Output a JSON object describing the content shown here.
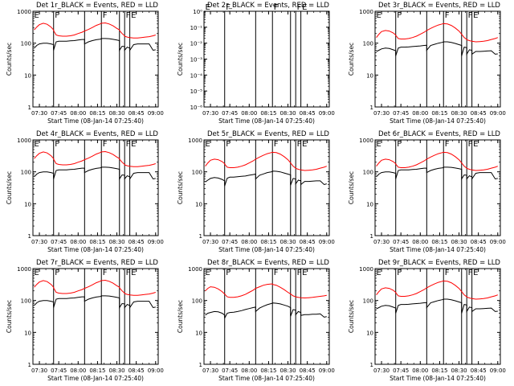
{
  "chart_data": [
    {
      "type": "line",
      "title": "Det 1r_BLACK = Events, RED = LLD",
      "ylabel": "Counts/sec",
      "xlabel": "Start Time (08-Jan-14 07:25:40)",
      "yscale": "log",
      "ylim": [
        1,
        1000
      ],
      "xticks": [
        "07:30",
        "07:45",
        "08:00",
        "08:15",
        "08:30",
        "08:45",
        "09:00"
      ],
      "yticks": [
        "1",
        "10",
        "100",
        "1000"
      ],
      "markers": [
        {
          "label": "E",
          "x": "07:25"
        },
        {
          "label": "F",
          "x": "07:41"
        },
        {
          "label": "",
          "x": "08:05"
        },
        {
          "label": "F",
          "x": "08:18"
        },
        {
          "label": "",
          "x": "08:32"
        },
        {
          "label": "F",
          "x": "08:36"
        },
        {
          "label": "E",
          "x": "08:40"
        }
      ],
      "series": [
        {
          "name": "LLD",
          "color": "#ff0000",
          "shape": "lld_a"
        },
        {
          "name": "Events",
          "color": "#000000",
          "shape": "evt_a"
        }
      ]
    },
    {
      "type": "line",
      "title": "Det 2r_BLACK = Events, RED = LLD",
      "ylabel": "Counts/sec",
      "xlabel": "Start Time (08-Jan-14 07:25:40)",
      "yscale": "log",
      "ylim": [
        1e-06,
        1
      ],
      "xticks": [
        "07:30",
        "07:45",
        "08:00",
        "08:15",
        "08:30",
        "08:45",
        "09:00"
      ],
      "yticks": [
        "10⁻⁶",
        "10⁻⁵",
        "10⁻⁴",
        "10⁻³",
        "10⁻²",
        "10⁻¹",
        "10⁰"
      ],
      "markers": [
        {
          "label": "E",
          "x": "07:25"
        },
        {
          "label": "F",
          "x": "07:41"
        },
        {
          "label": "",
          "x": "08:05"
        },
        {
          "label": "F",
          "x": "08:18"
        },
        {
          "label": "",
          "x": "08:32"
        },
        {
          "label": "F",
          "x": "08:36"
        },
        {
          "label": "E",
          "x": "08:40"
        }
      ],
      "series": []
    },
    {
      "type": "line",
      "title": "Det 3r_BLACK = Events, RED = LLD",
      "ylabel": "Counts/sec",
      "xlabel": "Start Time (08-Jan-14 07:25:40)",
      "yscale": "log",
      "ylim": [
        1,
        1000
      ],
      "xticks": [
        "07:30",
        "07:45",
        "08:00",
        "08:15",
        "08:30",
        "08:45",
        "09:00"
      ],
      "yticks": [
        "1",
        "10",
        "100",
        "1000"
      ],
      "markers": [
        {
          "label": "E",
          "x": "07:25"
        },
        {
          "label": "F",
          "x": "07:41"
        },
        {
          "label": "",
          "x": "08:05"
        },
        {
          "label": "F",
          "x": "08:18"
        },
        {
          "label": "",
          "x": "08:32"
        },
        {
          "label": "F",
          "x": "08:36"
        },
        {
          "label": "E",
          "x": "08:40"
        }
      ],
      "series": [
        {
          "name": "LLD",
          "color": "#ff0000",
          "shape": "lld_b"
        },
        {
          "name": "Events",
          "color": "#000000",
          "shape": "evt_b"
        }
      ]
    },
    {
      "type": "line",
      "title": "Det 4r_BLACK = Events, RED = LLD",
      "ylabel": "Counts/sec",
      "xlabel": "Start Time (08-Jan-14 07:25:40)",
      "yscale": "log",
      "ylim": [
        1,
        1000
      ],
      "xticks": [
        "07:30",
        "07:45",
        "08:00",
        "08:15",
        "08:30",
        "08:45",
        "09:00"
      ],
      "yticks": [
        "1",
        "10",
        "100",
        "1000"
      ],
      "markers": [
        {
          "label": "E",
          "x": "07:25"
        },
        {
          "label": "F",
          "x": "07:41"
        },
        {
          "label": "",
          "x": "08:05"
        },
        {
          "label": "F",
          "x": "08:18"
        },
        {
          "label": "",
          "x": "08:32"
        },
        {
          "label": "F",
          "x": "08:36"
        },
        {
          "label": "E",
          "x": "08:40"
        }
      ],
      "series": [
        {
          "name": "LLD",
          "color": "#ff0000",
          "shape": "lld_a"
        },
        {
          "name": "Events",
          "color": "#000000",
          "shape": "evt_a"
        }
      ]
    },
    {
      "type": "line",
      "title": "Det 5r_BLACK = Events, RED = LLD",
      "ylabel": "Counts/sec",
      "xlabel": "Start Time (08-Jan-14 07:25:40)",
      "yscale": "log",
      "ylim": [
        1,
        1000
      ],
      "xticks": [
        "07:30",
        "07:45",
        "08:00",
        "08:15",
        "08:30",
        "08:45",
        "09:00"
      ],
      "yticks": [
        "1",
        "10",
        "100",
        "1000"
      ],
      "markers": [
        {
          "label": "E",
          "x": "07:25"
        },
        {
          "label": "F",
          "x": "07:41"
        },
        {
          "label": "",
          "x": "08:05"
        },
        {
          "label": "F",
          "x": "08:18"
        },
        {
          "label": "",
          "x": "08:32"
        },
        {
          "label": "F",
          "x": "08:36"
        },
        {
          "label": "E",
          "x": "08:40"
        }
      ],
      "series": [
        {
          "name": "LLD",
          "color": "#ff0000",
          "shape": "lld_b"
        },
        {
          "name": "Events",
          "color": "#000000",
          "shape": "evt_c"
        }
      ]
    },
    {
      "type": "line",
      "title": "Det 6r_BLACK = Events, RED = LLD",
      "ylabel": "Counts/sec",
      "xlabel": "Start Time (08-Jan-14 07:25:40)",
      "yscale": "log",
      "ylim": [
        1,
        1000
      ],
      "xticks": [
        "07:30",
        "07:45",
        "08:00",
        "08:15",
        "08:30",
        "08:45",
        "09:00"
      ],
      "yticks": [
        "1",
        "10",
        "100",
        "1000"
      ],
      "markers": [
        {
          "label": "E",
          "x": "07:25"
        },
        {
          "label": "F",
          "x": "07:41"
        },
        {
          "label": "",
          "x": "08:05"
        },
        {
          "label": "F",
          "x": "08:18"
        },
        {
          "label": "",
          "x": "08:32"
        },
        {
          "label": "F",
          "x": "08:36"
        },
        {
          "label": "E",
          "x": "08:40"
        }
      ],
      "series": [
        {
          "name": "LLD",
          "color": "#ff0000",
          "shape": "lld_b"
        },
        {
          "name": "Events",
          "color": "#000000",
          "shape": "evt_a"
        }
      ]
    },
    {
      "type": "line",
      "title": "Det 7r_BLACK = Events, RED = LLD",
      "ylabel": "Counts/sec",
      "xlabel": "Start Time (08-Jan-14 07:25:40)",
      "yscale": "log",
      "ylim": [
        1,
        1000
      ],
      "xticks": [
        "07:30",
        "07:45",
        "08:00",
        "08:15",
        "08:30",
        "08:45",
        "09:00"
      ],
      "yticks": [
        "1",
        "10",
        "100",
        "1000"
      ],
      "markers": [
        {
          "label": "E",
          "x": "07:25"
        },
        {
          "label": "F",
          "x": "07:41"
        },
        {
          "label": "",
          "x": "08:05"
        },
        {
          "label": "F",
          "x": "08:18"
        },
        {
          "label": "",
          "x": "08:32"
        },
        {
          "label": "F",
          "x": "08:36"
        },
        {
          "label": "E",
          "x": "08:40"
        }
      ],
      "series": [
        {
          "name": "LLD",
          "color": "#ff0000",
          "shape": "lld_a"
        },
        {
          "name": "Events",
          "color": "#000000",
          "shape": "evt_a"
        }
      ]
    },
    {
      "type": "line",
      "title": "Det 8r_BLACK = Events, RED = LLD",
      "ylabel": "Counts/sec",
      "xlabel": "Start Time (08-Jan-14 07:25:40)",
      "yscale": "log",
      "ylim": [
        1,
        1000
      ],
      "xticks": [
        "07:30",
        "07:45",
        "08:00",
        "08:15",
        "08:30",
        "08:45",
        "09:00"
      ],
      "yticks": [
        "1",
        "10",
        "100",
        "1000"
      ],
      "markers": [
        {
          "label": "E",
          "x": "07:25"
        },
        {
          "label": "F",
          "x": "07:41"
        },
        {
          "label": "",
          "x": "08:05"
        },
        {
          "label": "F",
          "x": "08:18"
        },
        {
          "label": "",
          "x": "08:32"
        },
        {
          "label": "F",
          "x": "08:36"
        },
        {
          "label": "E",
          "x": "08:40"
        }
      ],
      "series": [
        {
          "name": "LLD",
          "color": "#ff0000",
          "shape": "lld_c"
        },
        {
          "name": "Events",
          "color": "#000000",
          "shape": "evt_d"
        }
      ]
    },
    {
      "type": "line",
      "title": "Det 9r_BLACK = Events, RED = LLD",
      "ylabel": "Counts/sec",
      "xlabel": "Start Time (08-Jan-14 07:25:40)",
      "yscale": "log",
      "ylim": [
        1,
        1000
      ],
      "xticks": [
        "07:30",
        "07:45",
        "08:00",
        "08:15",
        "08:30",
        "08:45",
        "09:00"
      ],
      "yticks": [
        "1",
        "10",
        "100",
        "1000"
      ],
      "markers": [
        {
          "label": "E",
          "x": "07:25"
        },
        {
          "label": "F",
          "x": "07:41"
        },
        {
          "label": "",
          "x": "08:05"
        },
        {
          "label": "F",
          "x": "08:18"
        },
        {
          "label": "",
          "x": "08:32"
        },
        {
          "label": "F",
          "x": "08:36"
        },
        {
          "label": "E",
          "x": "08:40"
        }
      ],
      "series": [
        {
          "name": "LLD",
          "color": "#ff0000",
          "shape": "lld_b"
        },
        {
          "name": "Events",
          "color": "#000000",
          "shape": "evt_b"
        }
      ]
    }
  ],
  "curves": {
    "times": [
      "07:26",
      "07:28",
      "07:30",
      "07:33",
      "07:36",
      "07:39",
      "07:41",
      "07:41",
      "07:43",
      "07:45",
      "07:48",
      "07:51",
      "07:54",
      "07:57",
      "08:00",
      "08:03",
      "08:05",
      "08:05",
      "08:08",
      "08:11",
      "08:14",
      "08:17",
      "08:18",
      "08:18",
      "08:21",
      "08:24",
      "08:27",
      "08:30",
      "08:32",
      "08:32",
      "08:34",
      "08:36",
      "08:36",
      "08:38",
      "08:40",
      "08:40",
      "08:43",
      "08:46",
      "08:49",
      "08:52",
      "08:55",
      "08:58",
      "09:00"
    ],
    "lld_a": [
      260,
      320,
      380,
      420,
      390,
      320,
      260,
      250,
      180,
      170,
      165,
      165,
      170,
      180,
      200,
      220,
      240,
      240,
      270,
      310,
      360,
      400,
      420,
      420,
      430,
      400,
      350,
      290,
      260,
      250,
      200,
      170,
      165,
      155,
      150,
      150,
      145,
      145,
      150,
      155,
      160,
      170,
      180
    ],
    "evt_a": [
      70,
      85,
      95,
      100,
      100,
      95,
      90,
      60,
      110,
      115,
      115,
      115,
      118,
      120,
      125,
      130,
      130,
      95,
      110,
      120,
      128,
      133,
      135,
      140,
      140,
      138,
      132,
      125,
      120,
      60,
      80,
      78,
      60,
      75,
      70,
      60,
      90,
      95,
      95,
      95,
      95,
      60,
      62
    ],
    "lld_b": [
      150,
      190,
      230,
      250,
      240,
      210,
      180,
      175,
      140,
      135,
      135,
      140,
      150,
      165,
      190,
      220,
      250,
      250,
      290,
      330,
      370,
      400,
      410,
      410,
      400,
      360,
      300,
      240,
      190,
      190,
      150,
      130,
      128,
      120,
      115,
      115,
      110,
      112,
      115,
      120,
      130,
      140,
      150
    ],
    "evt_b": [
      55,
      60,
      66,
      70,
      68,
      62,
      58,
      40,
      70,
      75,
      75,
      76,
      78,
      80,
      82,
      85,
      86,
      60,
      85,
      92,
      100,
      106,
      108,
      110,
      110,
      105,
      98,
      90,
      85,
      40,
      75,
      72,
      45,
      62,
      60,
      45,
      55,
      55,
      56,
      57,
      58,
      45,
      46
    ],
    "evt_c": [
      48,
      55,
      62,
      66,
      64,
      58,
      52,
      36,
      63,
      68,
      68,
      70,
      72,
      74,
      78,
      82,
      85,
      60,
      78,
      86,
      95,
      100,
      102,
      105,
      104,
      100,
      92,
      85,
      80,
      38,
      62,
      60,
      42,
      55,
      52,
      40,
      50,
      50,
      51,
      52,
      52,
      40,
      42
    ],
    "lld_c": [
      200,
      240,
      270,
      260,
      230,
      190,
      160,
      160,
      130,
      125,
      125,
      130,
      140,
      155,
      180,
      210,
      240,
      240,
      270,
      300,
      320,
      330,
      330,
      320,
      300,
      260,
      220,
      180,
      160,
      160,
      140,
      130,
      130,
      125,
      122,
      122,
      120,
      122,
      125,
      130,
      135,
      140,
      145
    ],
    "evt_d": [
      35,
      40,
      42,
      45,
      44,
      40,
      35,
      28,
      40,
      42,
      43,
      45,
      48,
      52,
      56,
      60,
      62,
      45,
      58,
      66,
      74,
      80,
      82,
      84,
      82,
      78,
      72,
      66,
      60,
      32,
      52,
      50,
      36,
      45,
      42,
      34,
      36,
      36,
      37,
      37,
      38,
      30,
      31
    ]
  },
  "icons": {
    "E": "E",
    "F": "F"
  }
}
